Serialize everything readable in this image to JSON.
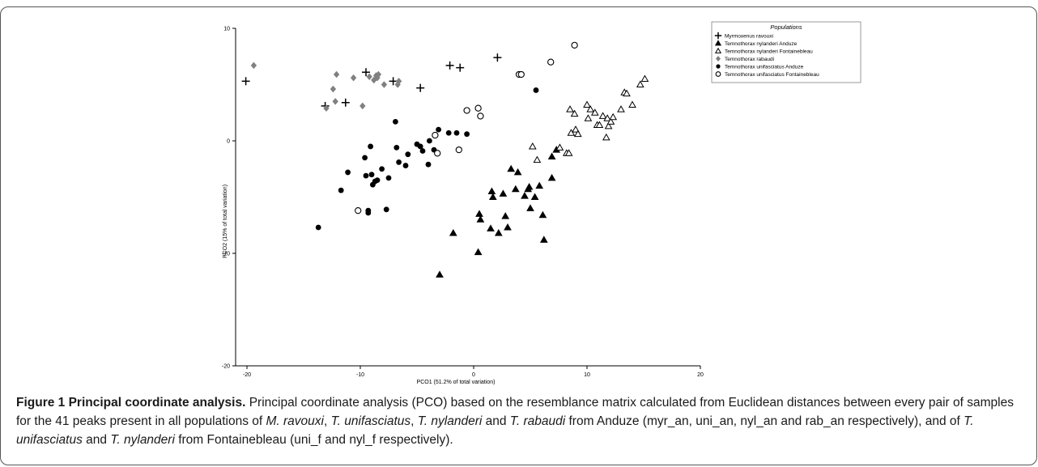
{
  "chart_data": {
    "type": "scatter",
    "xlabel": "PCO1 (51.2% of total variation)",
    "ylabel": "PCO2 (15% of total variation)",
    "xlim": [
      -21,
      20
    ],
    "ylim": [
      -20,
      10
    ],
    "xticks": [
      "-20",
      "-10",
      "0",
      "10",
      "20"
    ],
    "yticks": [
      "10",
      "0",
      "-10",
      "-20"
    ],
    "legend_title": "Populations",
    "legend_position": "top-right",
    "series": [
      {
        "name": "Myrmoxenus ravouxi",
        "marker": "plus",
        "color": "#000000",
        "points": [
          [
            -20.1,
            5.3
          ],
          [
            -13.1,
            3.1
          ],
          [
            -11.3,
            3.4
          ],
          [
            -9.5,
            6.1
          ],
          [
            -7.1,
            5.3
          ],
          [
            -4.7,
            4.7
          ],
          [
            -2.1,
            6.7
          ],
          [
            -1.2,
            6.5
          ],
          [
            2.1,
            7.4
          ]
        ]
      },
      {
        "name": "Temnothorax nylanderi Anduze",
        "marker": "filled-triangle",
        "color": "#000000",
        "points": [
          [
            -3.0,
            -11.9
          ],
          [
            -1.8,
            -8.2
          ],
          [
            0.4,
            -9.9
          ],
          [
            0.5,
            -6.5
          ],
          [
            0.6,
            -7.0
          ],
          [
            1.5,
            -7.8
          ],
          [
            1.6,
            -4.5
          ],
          [
            1.7,
            -5.0
          ],
          [
            2.2,
            -8.2
          ],
          [
            2.6,
            -4.7
          ],
          [
            2.8,
            -6.7
          ],
          [
            3.0,
            -7.7
          ],
          [
            3.3,
            -2.5
          ],
          [
            3.7,
            -4.3
          ],
          [
            3.9,
            -2.8
          ],
          [
            4.5,
            -4.9
          ],
          [
            4.8,
            -4.3
          ],
          [
            4.9,
            -4.1
          ],
          [
            5.0,
            -6.0
          ],
          [
            5.4,
            -5.0
          ],
          [
            5.8,
            -4.0
          ],
          [
            6.1,
            -6.6
          ],
          [
            6.2,
            -8.8
          ],
          [
            6.9,
            -3.3
          ],
          [
            6.9,
            -1.4
          ],
          [
            7.3,
            -0.8
          ]
        ]
      },
      {
        "name": "Temnothorax nylanderi Fontainebleau",
        "marker": "open-triangle",
        "color": "#000000",
        "points": [
          [
            5.2,
            -0.5
          ],
          [
            5.6,
            -1.7
          ],
          [
            7.6,
            -0.6
          ],
          [
            8.2,
            -1.1
          ],
          [
            8.4,
            -1.1
          ],
          [
            8.5,
            2.8
          ],
          [
            8.6,
            0.7
          ],
          [
            8.9,
            2.4
          ],
          [
            9.0,
            1.0
          ],
          [
            9.2,
            0.6
          ],
          [
            10.0,
            3.2
          ],
          [
            10.1,
            2.0
          ],
          [
            10.3,
            2.8
          ],
          [
            10.7,
            2.5
          ],
          [
            10.9,
            1.4
          ],
          [
            11.1,
            1.4
          ],
          [
            11.4,
            2.2
          ],
          [
            11.7,
            0.3
          ],
          [
            11.8,
            2.0
          ],
          [
            11.9,
            1.3
          ],
          [
            12.1,
            1.7
          ],
          [
            12.3,
            2.1
          ],
          [
            13.0,
            2.8
          ],
          [
            13.3,
            4.3
          ],
          [
            13.5,
            4.2
          ],
          [
            14.0,
            3.2
          ],
          [
            14.7,
            5.0
          ],
          [
            15.1,
            5.5
          ]
        ]
      },
      {
        "name": "Temnothorax rabaudi",
        "marker": "diamond",
        "color": "#808080",
        "points": [
          [
            -19.4,
            6.7
          ],
          [
            -13.0,
            2.9
          ],
          [
            -12.4,
            4.6
          ],
          [
            -12.2,
            3.5
          ],
          [
            -12.1,
            5.9
          ],
          [
            -10.6,
            5.6
          ],
          [
            -9.8,
            3.1
          ],
          [
            -9.2,
            5.7
          ],
          [
            -8.8,
            5.4
          ],
          [
            -8.5,
            5.6
          ],
          [
            -8.4,
            5.9
          ],
          [
            -7.9,
            5.0
          ],
          [
            -6.7,
            5.0
          ],
          [
            -6.6,
            5.3
          ],
          [
            -8.6,
            5.8
          ]
        ]
      },
      {
        "name": "Temnothorax unifasciatus Anduze",
        "marker": "filled-circle",
        "color": "#000000",
        "points": [
          [
            -13.7,
            -7.7
          ],
          [
            -11.7,
            -4.4
          ],
          [
            -11.1,
            -2.8
          ],
          [
            -9.6,
            -1.5
          ],
          [
            -9.5,
            -3.1
          ],
          [
            -9.1,
            -0.5
          ],
          [
            -9.0,
            -3.0
          ],
          [
            -8.9,
            -3.9
          ],
          [
            -8.7,
            -3.6
          ],
          [
            -8.5,
            -3.5
          ],
          [
            -8.1,
            -2.5
          ],
          [
            -7.7,
            -6.1
          ],
          [
            -7.5,
            -3.3
          ],
          [
            -6.9,
            1.7
          ],
          [
            -6.8,
            -0.6
          ],
          [
            -6.6,
            -1.9
          ],
          [
            -6.0,
            -2.2
          ],
          [
            -5.8,
            -1.2
          ],
          [
            -5.0,
            -0.3
          ],
          [
            -4.7,
            -0.5
          ],
          [
            -4.5,
            -0.9
          ],
          [
            -4.0,
            -2.1
          ],
          [
            -3.9,
            0.0
          ],
          [
            -3.5,
            -0.8
          ],
          [
            -3.1,
            1.0
          ],
          [
            -2.2,
            0.7
          ],
          [
            -1.5,
            0.7
          ],
          [
            -0.6,
            0.6
          ],
          [
            5.5,
            4.5
          ],
          [
            -9.3,
            -6.2
          ],
          [
            -9.3,
            -6.4
          ]
        ]
      },
      {
        "name": "Temnothorax unifasciatus Fontainebleau",
        "marker": "open-circle",
        "color": "#000000",
        "points": [
          [
            -10.2,
            -6.2
          ],
          [
            -3.4,
            0.5
          ],
          [
            -3.2,
            -1.1
          ],
          [
            -1.3,
            -0.8
          ],
          [
            -0.6,
            2.7
          ],
          [
            0.4,
            2.9
          ],
          [
            0.6,
            2.2
          ],
          [
            4.0,
            5.9
          ],
          [
            4.2,
            5.9
          ],
          [
            6.8,
            7.0
          ],
          [
            8.9,
            8.5
          ]
        ]
      }
    ]
  },
  "caption": {
    "title": "Figure 1 Principal coordinate analysis.",
    "text1": " Principal coordinate analysis (PCO) based on the resemblance matrix calculated from Euclidean distances between every pair of samples for the 41 peaks present in all populations of ",
    "sp_m_ravouxi": "M. ravouxi",
    "sep1": ", ",
    "sp_t_unifasciatus": "T. unifasciatus",
    "sep2": ", ",
    "sp_t_nylanderi": "T. nylanderi",
    "and1": " and ",
    "sp_t_rabaudi": "T. rabaudi",
    "text2": " from Anduze (myr_an, uni_an, nyl_an and rab_an respectively), and of ",
    "sp_t_unifasciatus_2": "T. unifasciatus",
    "and2": " and ",
    "sp_t_nylanderi_2": "T. nylanderi",
    "text3": " from Fontainebleau (uni_f and nyl_f respectively)."
  }
}
